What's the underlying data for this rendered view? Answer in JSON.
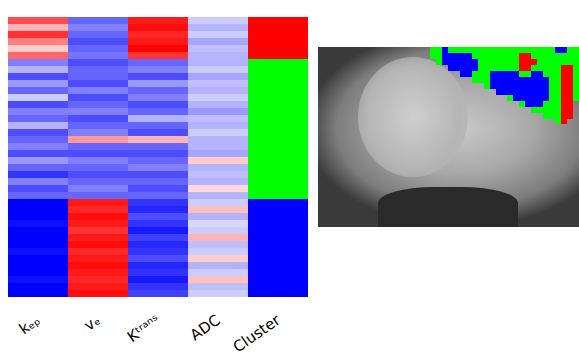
{
  "chart_data": [
    {
      "type": "heatmap",
      "columns": [
        "kₑₚ",
        "vₑ",
        "Kᵗʳᵃⁿˢ",
        "ADC"
      ],
      "cluster_label": "Cluster",
      "value_range": [
        -1,
        1
      ],
      "colors": [
        "#0000ff",
        "#ffffff",
        "#ff0000"
      ],
      "clusters": [
        {
          "id": 1,
          "color": "#ff0000"
        },
        {
          "id": 2,
          "color": "#00ff00"
        },
        {
          "id": 3,
          "color": "#0000ff"
        }
      ],
      "rows": [
        [
          0.7,
          -0.6,
          0.9,
          -0.2
        ],
        [
          0.3,
          -0.5,
          0.95,
          -0.3
        ],
        [
          0.8,
          -0.6,
          0.85,
          -0.2
        ],
        [
          0.5,
          -0.7,
          0.9,
          -0.35
        ],
        [
          0.2,
          -0.6,
          1.0,
          -0.25
        ],
        [
          0.6,
          -0.55,
          0.8,
          -0.3
        ],
        [
          -0.5,
          -0.7,
          -0.6,
          -0.3
        ],
        [
          -0.3,
          -0.6,
          -0.5,
          -0.2
        ],
        [
          -0.7,
          -0.6,
          -0.7,
          -0.35
        ],
        [
          -0.4,
          -0.7,
          -0.4,
          -0.25
        ],
        [
          -0.6,
          -0.5,
          -0.6,
          -0.3
        ],
        [
          -0.2,
          -0.7,
          -0.5,
          -0.2
        ],
        [
          -0.7,
          -0.6,
          -0.7,
          -0.3
        ],
        [
          -0.5,
          -0.5,
          -0.6,
          -0.4
        ],
        [
          -0.6,
          -0.7,
          -0.3,
          -0.25
        ],
        [
          -0.3,
          -0.6,
          -0.6,
          -0.3
        ],
        [
          -0.7,
          -0.5,
          -0.7,
          -0.2
        ],
        [
          -0.6,
          0.4,
          0.3,
          -0.3
        ],
        [
          -0.5,
          -0.6,
          -0.6,
          -0.3
        ],
        [
          -0.7,
          -0.7,
          -0.7,
          -0.35
        ],
        [
          -0.4,
          -0.5,
          -0.6,
          0.2
        ],
        [
          -0.6,
          -0.6,
          -0.5,
          -0.3
        ],
        [
          -0.8,
          -0.7,
          -0.7,
          -0.25
        ],
        [
          -0.5,
          -0.6,
          -0.6,
          -0.3
        ],
        [
          -0.7,
          -0.5,
          -0.7,
          0.15
        ],
        [
          -0.6,
          -0.6,
          -0.6,
          -0.3
        ],
        [
          -1,
          0.9,
          -0.8,
          -0.2
        ],
        [
          -1,
          0.85,
          -0.85,
          0.25
        ],
        [
          -1,
          0.95,
          -0.7,
          -0.3
        ],
        [
          -0.95,
          0.9,
          -0.8,
          -0.15
        ],
        [
          -1,
          0.8,
          -0.9,
          -0.2
        ],
        [
          -1,
          0.9,
          -0.75,
          0.3
        ],
        [
          -1,
          0.95,
          -0.85,
          -0.25
        ],
        [
          -0.95,
          0.85,
          -0.8,
          -0.2
        ],
        [
          -1,
          0.9,
          -0.7,
          0.2
        ],
        [
          -1,
          0.95,
          -0.85,
          -0.3
        ],
        [
          -1,
          0.9,
          -0.8,
          -0.2
        ],
        [
          -0.95,
          0.85,
          -0.9,
          0.25
        ],
        [
          -1,
          0.9,
          -0.8,
          -0.25
        ],
        [
          -1,
          0.95,
          -0.75,
          -0.2
        ]
      ],
      "cluster": [
        1,
        1,
        1,
        1,
        1,
        1,
        2,
        2,
        2,
        2,
        2,
        2,
        2,
        2,
        2,
        2,
        2,
        2,
        2,
        2,
        2,
        2,
        2,
        2,
        2,
        2,
        3,
        3,
        3,
        3,
        3,
        3,
        3,
        3,
        3,
        3,
        3,
        3,
        3,
        3
      ]
    },
    {
      "type": "cluster_map",
      "cells": [
        [
          2,
          2,
          3,
          2,
          2,
          2,
          2,
          2,
          2,
          2,
          2,
          2,
          2,
          2,
          2,
          2,
          2,
          2,
          2,
          2,
          2,
          3,
          3,
          2,
          2
        ],
        [
          2,
          2,
          3,
          3,
          3,
          3,
          3,
          2,
          2,
          2,
          2,
          2,
          2,
          2,
          2,
          1,
          1,
          2,
          2,
          2,
          2,
          2,
          2,
          2,
          2
        ],
        [
          0,
          2,
          3,
          3,
          3,
          3,
          3,
          3,
          2,
          2,
          2,
          2,
          2,
          2,
          2,
          1,
          1,
          1,
          2,
          2,
          2,
          2,
          2,
          2,
          2
        ],
        [
          0,
          0,
          0,
          3,
          3,
          3,
          3,
          3,
          2,
          2,
          2,
          2,
          2,
          2,
          2,
          1,
          1,
          2,
          2,
          2,
          2,
          2,
          1,
          1,
          2
        ],
        [
          0,
          0,
          0,
          0,
          0,
          3,
          3,
          2,
          2,
          2,
          3,
          3,
          3,
          3,
          3,
          2,
          2,
          3,
          3,
          2,
          2,
          2,
          1,
          1,
          2
        ],
        [
          0,
          0,
          0,
          0,
          0,
          0,
          0,
          2,
          2,
          2,
          3,
          3,
          3,
          3,
          3,
          3,
          3,
          3,
          3,
          3,
          2,
          2,
          1,
          1,
          2
        ],
        [
          0,
          0,
          0,
          0,
          0,
          0,
          0,
          0,
          0,
          2,
          3,
          3,
          3,
          3,
          3,
          3,
          3,
          3,
          3,
          3,
          2,
          2,
          1,
          1,
          2
        ],
        [
          0,
          0,
          0,
          0,
          0,
          0,
          0,
          0,
          0,
          0,
          0,
          3,
          3,
          3,
          3,
          3,
          3,
          3,
          3,
          3,
          2,
          2,
          1,
          1,
          2
        ],
        [
          0,
          0,
          0,
          0,
          0,
          0,
          0,
          0,
          0,
          0,
          0,
          0,
          0,
          2,
          3,
          3,
          3,
          3,
          3,
          3,
          2,
          2,
          1,
          1,
          2
        ],
        [
          0,
          0,
          0,
          0,
          0,
          0,
          0,
          0,
          0,
          0,
          0,
          0,
          0,
          0,
          0,
          2,
          3,
          3,
          3,
          2,
          2,
          2,
          1,
          1,
          0
        ],
        [
          0,
          0,
          0,
          0,
          0,
          0,
          0,
          0,
          0,
          0,
          0,
          0,
          0,
          0,
          0,
          0,
          0,
          2,
          2,
          2,
          2,
          2,
          1,
          1,
          0
        ],
        [
          0,
          0,
          0,
          0,
          0,
          0,
          0,
          0,
          0,
          0,
          0,
          0,
          0,
          0,
          0,
          0,
          0,
          0,
          0,
          2,
          2,
          2,
          1,
          1,
          0
        ],
        [
          0,
          0,
          0,
          0,
          0,
          0,
          0,
          0,
          0,
          0,
          0,
          0,
          0,
          0,
          0,
          0,
          0,
          0,
          0,
          0,
          0,
          2,
          1,
          0,
          0
        ]
      ]
    }
  ]
}
